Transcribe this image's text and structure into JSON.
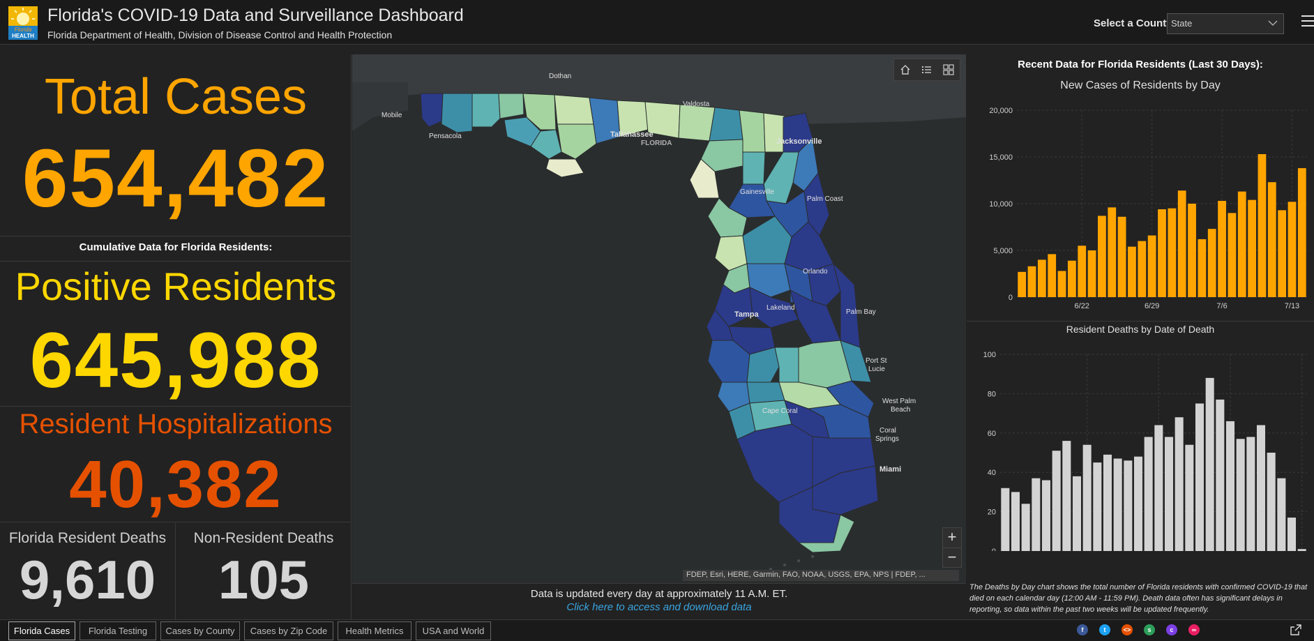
{
  "header": {
    "title": "Florida's COVID-19 Data and Surveillance Dashboard",
    "subtitle": "Florida Department of Health, Division of Disease Control and Health Protection",
    "logo_text_1": "Florida",
    "logo_text_2": "HEALTH",
    "county_label": "Select a County",
    "county_value": "State"
  },
  "left": {
    "total_cases_label": "Total Cases",
    "total_cases_value": "654,482",
    "cumulative_label": "Cumulative Data for Florida Residents:",
    "positive_label": "Positive Residents",
    "positive_value": "645,988",
    "hosp_label": "Resident Hospitalizations",
    "hosp_value": "40,382",
    "deaths_label": "Florida Resident Deaths",
    "deaths_value": "9,610",
    "nonres_label": "Non-Resident Deaths",
    "nonres_value": "105"
  },
  "map": {
    "labels": {
      "dothan": "Dothan",
      "mobile": "Mobile",
      "valdosta": "Valdosta",
      "pensacola": "Pensacola",
      "tallahassee": "Tallahassee",
      "florida": "FLORIDA",
      "jacksonville": "Jacksonville",
      "gainesville": "Gainesville",
      "palm_coast": "Palm Coast",
      "orlando": "Orlando",
      "lakeland": "Lakeland",
      "tampa": "Tampa",
      "palm_bay": "Palm Bay",
      "port_st_lucie_1": "Port St",
      "port_st_lucie_2": "Lucie",
      "west_palm_1": "West Palm",
      "west_palm_2": "Beach",
      "cape_coral": "Cape Coral",
      "coral_springs_1": "Coral",
      "coral_springs_2": "Springs",
      "miami": "Miami"
    },
    "attribution": "FDEP, Esri, HERE, Garmin, FAO, NOAA, USGS, EPA, NPS | FDEP, ...",
    "zoom_in": "+",
    "zoom_out": "−",
    "icons": [
      "home-icon",
      "legend-icon",
      "basemap-icon"
    ]
  },
  "update": {
    "line1": "Data is updated every day at approximately 11 A.M. ET.",
    "link": "Click here to access and download data"
  },
  "right": {
    "recent_title": "Recent Data for Florida Residents (Last 30 Days):",
    "deaths_note": "The Deaths by Day chart shows the total number of Florida residents with confirmed COVID-19 that died on each calendar day (12:00 AM - 11:59 PM). Death data often has significant delays in reporting, so data within the past two weeks will be updated frequently."
  },
  "chart_data": [
    {
      "type": "bar",
      "title": "New Cases of Residents by Day",
      "x_tick_labels": [
        "6/22",
        "6/29",
        "7/6",
        "7/13"
      ],
      "x_tick_index": [
        6,
        13,
        20,
        27
      ],
      "values": [
        2700,
        3300,
        4000,
        4600,
        2800,
        3900,
        5500,
        5000,
        8700,
        9600,
        8600,
        5400,
        6000,
        6600,
        9400,
        9500,
        11400,
        10000,
        6200,
        7300,
        10300,
        9000,
        11300,
        10400,
        15300,
        12300,
        9300,
        10200,
        13800
      ],
      "ylim": [
        0,
        20000
      ],
      "y_ticks": [
        0,
        5000,
        10000,
        15000,
        20000
      ],
      "y_tick_labels": [
        "0",
        "5,000",
        "10,000",
        "15,000",
        "20,000"
      ],
      "color": "#ffa500",
      "grid": true
    },
    {
      "type": "bar",
      "title": "Resident Deaths by Date of Death",
      "x_tick_labels": [
        "6/22",
        "6/29",
        "7/6",
        "7/13"
      ],
      "x_tick_index": [
        8,
        15,
        22,
        29
      ],
      "values": [
        32,
        30,
        24,
        37,
        36,
        51,
        56,
        38,
        54,
        45,
        49,
        47,
        46,
        48,
        58,
        64,
        58,
        68,
        54,
        75,
        88,
        77,
        66,
        57,
        58,
        64,
        50,
        37,
        17,
        1
      ],
      "ylim": [
        0,
        100
      ],
      "y_ticks": [
        0,
        20,
        40,
        60,
        80,
        100
      ],
      "y_tick_labels": [
        "0",
        "20",
        "40",
        "60",
        "80",
        "100"
      ],
      "color": "#d3d3d3",
      "grid": true
    }
  ],
  "tabs": [
    {
      "label": "Florida Cases",
      "active": true
    },
    {
      "label": "Florida Testing",
      "active": false
    },
    {
      "label": "Cases by County",
      "active": false
    },
    {
      "label": "Cases by Zip Code",
      "active": false
    },
    {
      "label": "Health Metrics",
      "active": false
    },
    {
      "label": "USA and World",
      "active": false
    }
  ],
  "social": [
    {
      "name": "facebook-icon",
      "color": "#3b5998"
    },
    {
      "name": "twitter-icon",
      "color": "#1da1f2"
    },
    {
      "name": "code-icon",
      "color": "#e65100"
    },
    {
      "name": "share-icon",
      "color": "#2e9e5b"
    },
    {
      "name": "chat-icon",
      "color": "#7b3fe4"
    },
    {
      "name": "link-icon",
      "color": "#e91e63"
    }
  ],
  "colors": {
    "total_cases": "#ffa500",
    "positive": "#ffd700",
    "hospital": "#e65100"
  }
}
